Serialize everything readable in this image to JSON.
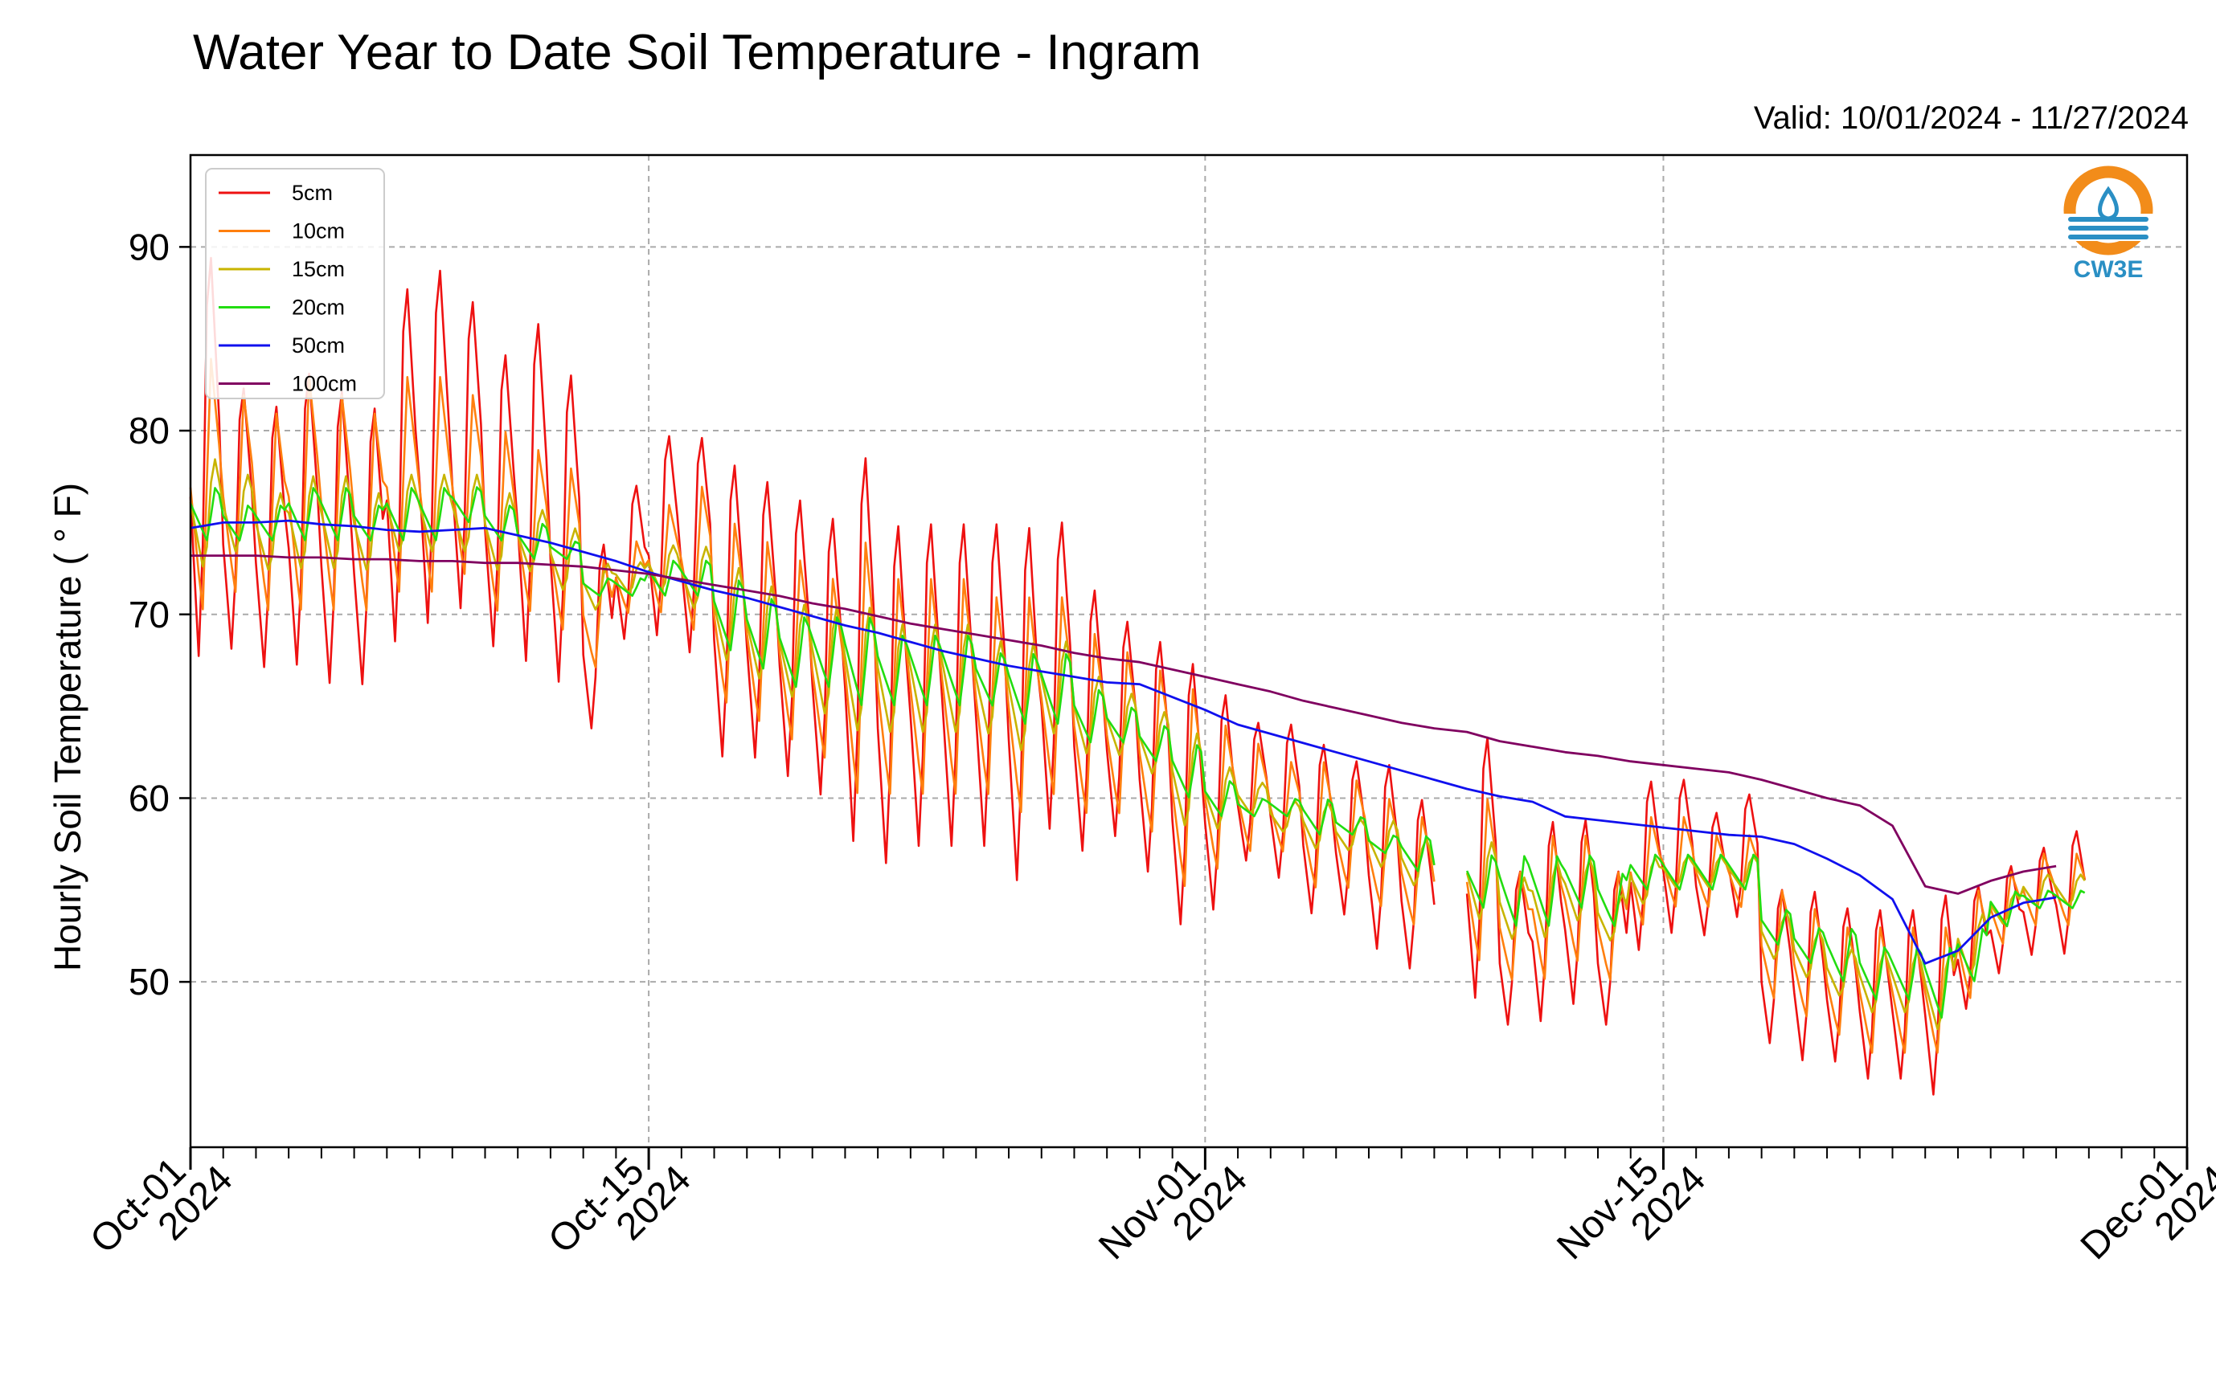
{
  "chart_data": {
    "type": "line",
    "title": "Water Year to Date Soil Temperature - Ingram",
    "subtitle": "Valid: 10/01/2024 - 11/27/2024",
    "ylabel": "Hourly Soil Temperature ( ° F)",
    "xlabel": "",
    "xlim": [
      "2024-10-01",
      "2024-12-01"
    ],
    "ylim": [
      41,
      95
    ],
    "yticks": [
      50,
      60,
      70,
      80,
      90
    ],
    "xticks": [
      {
        "date": "2024-10-01",
        "label1": "Oct-01",
        "label2": "2024"
      },
      {
        "date": "2024-10-15",
        "label1": "Oct-15",
        "label2": "2024"
      },
      {
        "date": "2024-11-01",
        "label1": "Nov-01",
        "label2": "2024"
      },
      {
        "date": "2024-11-15",
        "label1": "Nov-15",
        "label2": "2024"
      },
      {
        "date": "2024-12-01",
        "label1": "Dec-01",
        "label2": "2024"
      }
    ],
    "grid": true,
    "legend_position": "upper-left",
    "data_gap": [
      "2024-11-08",
      "2024-11-09"
    ],
    "series": [
      {
        "name": "5cm",
        "color": "#ee1111",
        "daily_max": [
          92,
          84,
          83,
          85,
          84,
          83,
          90,
          91,
          89,
          86,
          88,
          85,
          75,
          78,
          81,
          81,
          80,
          79,
          78,
          77,
          81,
          77,
          77,
          77,
          77,
          77,
          77,
          73,
          71,
          70,
          69,
          67,
          65,
          65,
          64,
          63,
          63,
          61,
          62,
          65,
          57,
          60,
          60,
          57,
          62,
          62,
          60,
          61,
          56,
          56,
          55,
          55,
          55,
          56,
          56,
          57,
          58,
          59,
          58
        ],
        "daily_min": [
          66,
          67,
          66,
          66,
          65,
          65,
          67,
          68,
          69,
          67,
          66,
          65,
          63,
          68,
          68,
          67,
          61,
          61,
          60,
          59,
          56,
          55,
          56,
          56,
          56,
          54,
          57,
          56,
          57,
          55,
          52,
          53,
          56,
          55,
          53,
          53,
          51,
          50,
          49,
          48,
          47,
          47,
          48,
          47,
          51,
          52,
          52,
          53,
          46,
          45,
          45,
          44,
          44,
          43,
          48,
          50,
          51,
          51,
          52
        ],
        "values_at_day_start": [
          92,
          70,
          71,
          70,
          69,
          70,
          72,
          72,
          73,
          72,
          71,
          70,
          68,
          70,
          72,
          71,
          66,
          65,
          64,
          63,
          62,
          61,
          61,
          62,
          62,
          60,
          62,
          61,
          61,
          60,
          58,
          58,
          59,
          58,
          56,
          56,
          55,
          54,
          53,
          53,
          53,
          53,
          53,
          52,
          55,
          55,
          55,
          55,
          50,
          48,
          48,
          47,
          47,
          46,
          52,
          54,
          56,
          54,
          57
        ]
      },
      {
        "name": "10cm",
        "color": "#ff7f0e",
        "daily_max": [
          84,
          82,
          81,
          83,
          82,
          81,
          83,
          83,
          82,
          80,
          79,
          78,
          73,
          74,
          76,
          77,
          75,
          74,
          73,
          72,
          74,
          72,
          72,
          72,
          71,
          71,
          71,
          69,
          68,
          67,
          66,
          64,
          63,
          62,
          62,
          61,
          60,
          59,
          59,
          60,
          56,
          58,
          58,
          56,
          59,
          59,
          58,
          58,
          55,
          54,
          53,
          53,
          53,
          53,
          55,
          56,
          57,
          57,
          57
        ],
        "daily_min": [
          70,
          71,
          70,
          70,
          70,
          70,
          71,
          71,
          72,
          70,
          70,
          69,
          67,
          70,
          70,
          69,
          65,
          64,
          63,
          62,
          60,
          60,
          60,
          60,
          60,
          59,
          60,
          59,
          59,
          58,
          55,
          56,
          57,
          57,
          55,
          55,
          54,
          53,
          52,
          51,
          50,
          50,
          51,
          50,
          53,
          54,
          54,
          54,
          49,
          48,
          47,
          46,
          46,
          46,
          49,
          52,
          53,
          53,
          53
        ],
        "values_at_day_start": [
          75,
          73,
          73,
          73,
          72,
          72,
          73,
          73,
          74,
          73,
          72,
          71,
          70,
          71,
          72,
          72,
          69,
          68,
          67,
          66,
          65,
          65,
          65,
          65,
          65,
          64,
          64,
          63,
          63,
          62,
          60,
          60,
          60,
          60,
          58,
          58,
          57,
          56,
          55,
          55,
          54,
          54,
          54,
          53,
          56,
          56,
          56,
          56,
          52,
          51,
          50,
          49,
          49,
          48,
          51,
          54,
          55,
          54,
          55
        ]
      },
      {
        "name": "15cm",
        "color": "#c8b400",
        "daily_max": [
          79,
          78,
          77,
          78,
          78,
          77,
          78,
          78,
          78,
          77,
          76,
          75,
          73,
          73,
          74,
          74,
          73,
          72,
          71,
          71,
          71,
          70,
          70,
          70,
          69,
          69,
          69,
          67,
          66,
          65,
          64,
          62,
          61,
          60,
          60,
          59,
          59,
          58,
          58,
          58,
          56,
          57,
          57,
          55,
          57,
          57,
          57,
          57,
          54,
          53,
          52,
          52,
          52,
          52,
          54,
          55,
          56,
          56,
          56
        ],
        "daily_min": [
          72,
          73,
          72,
          72,
          72,
          72,
          73,
          73,
          73,
          72,
          72,
          71,
          70,
          71,
          71,
          70,
          67,
          66,
          65,
          64,
          63,
          63,
          63,
          63,
          63,
          62,
          63,
          62,
          62,
          61,
          58,
          58,
          59,
          58,
          57,
          57,
          56,
          55,
          54,
          53,
          52,
          52,
          53,
          52,
          54,
          55,
          55,
          55,
          51,
          50,
          49,
          48,
          48,
          47,
          50,
          53,
          54,
          54,
          54
        ],
        "values_at_day_start": [
          76,
          75,
          75,
          75,
          75,
          74,
          75,
          75,
          76,
          75,
          74,
          73,
          72,
          72,
          73,
          72,
          70,
          69,
          68,
          67,
          67,
          66,
          66,
          66,
          66,
          65,
          66,
          65,
          64,
          63,
          61,
          60,
          61,
          60,
          59,
          58,
          58,
          57,
          56,
          56,
          55,
          55,
          55,
          54,
          56,
          56,
          56,
          56,
          53,
          52,
          51,
          50,
          50,
          49,
          52,
          54,
          55,
          55,
          55
        ]
      },
      {
        "name": "20cm",
        "color": "#22dd11",
        "daily_max": [
          77,
          76,
          76,
          77,
          77,
          76,
          77,
          77,
          77,
          76,
          75,
          74,
          72,
          72,
          73,
          73,
          72,
          71,
          70,
          70,
          70,
          69,
          69,
          69,
          68,
          68,
          68,
          66,
          65,
          64,
          63,
          61,
          60,
          60,
          60,
          59,
          58,
          58,
          57,
          57,
          57,
          57,
          57,
          56,
          57,
          57,
          57,
          57,
          54,
          53,
          53,
          52,
          52,
          52,
          53,
          55,
          55,
          55,
          55
        ],
        "daily_min": [
          74,
          74,
          74,
          74,
          74,
          74,
          74,
          74,
          75,
          74,
          73,
          73,
          71,
          71,
          71,
          71,
          68,
          67,
          66,
          66,
          65,
          65,
          65,
          65,
          65,
          64,
          64,
          63,
          63,
          62,
          60,
          59,
          59,
          59,
          58,
          58,
          57,
          56,
          55,
          54,
          53,
          53,
          54,
          53,
          55,
          55,
          55,
          55,
          52,
          51,
          50,
          49,
          49,
          48,
          50,
          53,
          54,
          54,
          54
        ],
        "values_at_day_start": [
          76,
          75,
          75,
          75,
          75,
          75,
          75,
          75,
          76,
          75,
          74,
          74,
          72,
          72,
          72,
          72,
          70,
          69,
          68,
          68,
          67,
          67,
          67,
          67,
          67,
          66,
          66,
          65,
          64,
          63,
          61,
          60,
          60,
          60,
          59,
          59,
          58,
          57,
          56,
          56,
          55,
          55,
          55,
          54,
          56,
          56,
          56,
          56,
          53,
          52,
          51,
          50,
          50,
          49,
          51,
          54,
          55,
          55,
          55
        ]
      },
      {
        "name": "50cm",
        "color": "#1010ee",
        "values_at_day_start": [
          74.7,
          75.0,
          75.0,
          75.1,
          74.9,
          74.8,
          74.6,
          74.5,
          74.6,
          74.7,
          74.3,
          73.9,
          73.4,
          72.9,
          72.3,
          71.8,
          71.3,
          70.9,
          70.4,
          69.9,
          69.4,
          69.0,
          68.5,
          68.0,
          67.6,
          67.2,
          66.9,
          66.6,
          66.3,
          66.2,
          65.5,
          64.8,
          64.0,
          63.5,
          63.0,
          62.5,
          62.0,
          61.5,
          61.0,
          60.5,
          60.1,
          59.8,
          59.0,
          58.8,
          58.6,
          58.4,
          58.2,
          58.0,
          57.9,
          57.5,
          56.7,
          55.8,
          54.5,
          51.0,
          51.7,
          53.5,
          54.3,
          54.6,
          54.7
        ]
      },
      {
        "name": "100cm",
        "color": "#800060",
        "values_at_day_start": [
          73.2,
          73.2,
          73.2,
          73.1,
          73.1,
          73.0,
          73.0,
          72.9,
          72.9,
          72.8,
          72.8,
          72.7,
          72.6,
          72.4,
          72.2,
          71.9,
          71.6,
          71.3,
          71.0,
          70.6,
          70.3,
          69.9,
          69.5,
          69.2,
          68.9,
          68.6,
          68.3,
          67.9,
          67.6,
          67.4,
          67.0,
          66.6,
          66.2,
          65.8,
          65.3,
          64.9,
          64.5,
          64.1,
          63.8,
          63.6,
          63.1,
          62.8,
          62.5,
          62.3,
          62.0,
          61.8,
          61.6,
          61.4,
          61.0,
          60.5,
          60.0,
          59.6,
          58.5,
          55.2,
          54.8,
          55.5,
          56.0,
          56.3,
          56.5
        ]
      }
    ]
  },
  "logo": {
    "text": "CW3E",
    "ring_color": "#f28c1a",
    "accent_color": "#2a8fc4"
  }
}
